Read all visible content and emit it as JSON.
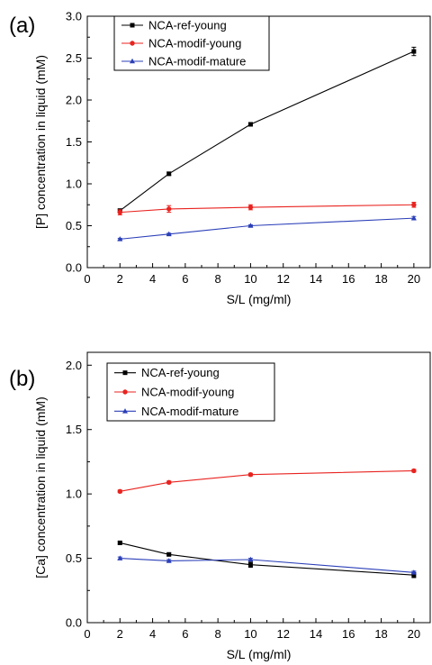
{
  "chart_data": [
    {
      "panel_label": "(a)",
      "type": "line",
      "xlabel": "S/L (mg/ml)",
      "ylabel": "[P] concentration in liquid (mM)",
      "xlim": [
        0,
        21
      ],
      "ylim": [
        0,
        3.0
      ],
      "xticks": [
        0,
        2,
        4,
        6,
        8,
        10,
        12,
        14,
        16,
        18,
        20
      ],
      "xtick_labels": [
        "0",
        "2",
        "4",
        "6",
        "8",
        "10",
        "12",
        "14",
        "16",
        "18",
        "20"
      ],
      "yticks": [
        0,
        0.5,
        1.0,
        1.5,
        2.0,
        2.5,
        3.0
      ],
      "ytick_labels": [
        "0.0",
        "0.5",
        "1.0",
        "1.5",
        "2.0",
        "2.5",
        "3.0"
      ],
      "legend_position": "top-left",
      "series": [
        {
          "name": "NCA-ref-young",
          "color": "#000000",
          "marker": "square",
          "x": [
            2,
            5,
            10,
            20
          ],
          "y": [
            0.68,
            1.12,
            1.71,
            2.58
          ],
          "err": [
            0.02,
            0.02,
            0.02,
            0.05
          ]
        },
        {
          "name": "NCA-modif-young",
          "color": "#e8231f",
          "marker": "circle",
          "x": [
            2,
            5,
            10,
            20
          ],
          "y": [
            0.66,
            0.7,
            0.72,
            0.75
          ],
          "err": [
            0.03,
            0.04,
            0.03,
            0.03
          ]
        },
        {
          "name": "NCA-modif-mature",
          "color": "#2b3fb8",
          "marker": "triangle",
          "x": [
            2,
            5,
            10,
            20
          ],
          "y": [
            0.34,
            0.4,
            0.5,
            0.59
          ],
          "err": [
            0.01,
            0.01,
            0.01,
            0.02
          ]
        }
      ]
    },
    {
      "panel_label": "(b)",
      "type": "line",
      "xlabel": "S/L (mg/ml)",
      "ylabel": "[Ca] concentration in liquid (mM)",
      "xlim": [
        0,
        21
      ],
      "ylim": [
        0,
        2.1
      ],
      "xticks": [
        0,
        2,
        4,
        6,
        8,
        10,
        12,
        14,
        16,
        18,
        20
      ],
      "xtick_labels": [
        "0",
        "2",
        "4",
        "6",
        "8",
        "10",
        "12",
        "14",
        "16",
        "18",
        "20"
      ],
      "yticks": [
        0,
        0.5,
        1.0,
        1.5,
        2.0
      ],
      "ytick_labels": [
        "0.0",
        "0.5",
        "1.0",
        "1.5",
        "2.0"
      ],
      "legend_position": "top-left",
      "series": [
        {
          "name": "NCA-ref-young",
          "color": "#000000",
          "marker": "square",
          "x": [
            2,
            5,
            10,
            20
          ],
          "y": [
            0.62,
            0.53,
            0.45,
            0.37
          ],
          "err": [
            0.01,
            0.01,
            0.02,
            0.02
          ]
        },
        {
          "name": "NCA-modif-young",
          "color": "#e8231f",
          "marker": "circle",
          "x": [
            2,
            5,
            10,
            20
          ],
          "y": [
            1.02,
            1.09,
            1.15,
            1.18
          ],
          "err": [
            0.01,
            0.01,
            0.01,
            0.01
          ]
        },
        {
          "name": "NCA-modif-mature",
          "color": "#2b3fb8",
          "marker": "triangle",
          "x": [
            2,
            5,
            10,
            20
          ],
          "y": [
            0.5,
            0.48,
            0.49,
            0.39
          ],
          "err": [
            0.01,
            0.01,
            0.01,
            0.01
          ]
        }
      ]
    }
  ]
}
